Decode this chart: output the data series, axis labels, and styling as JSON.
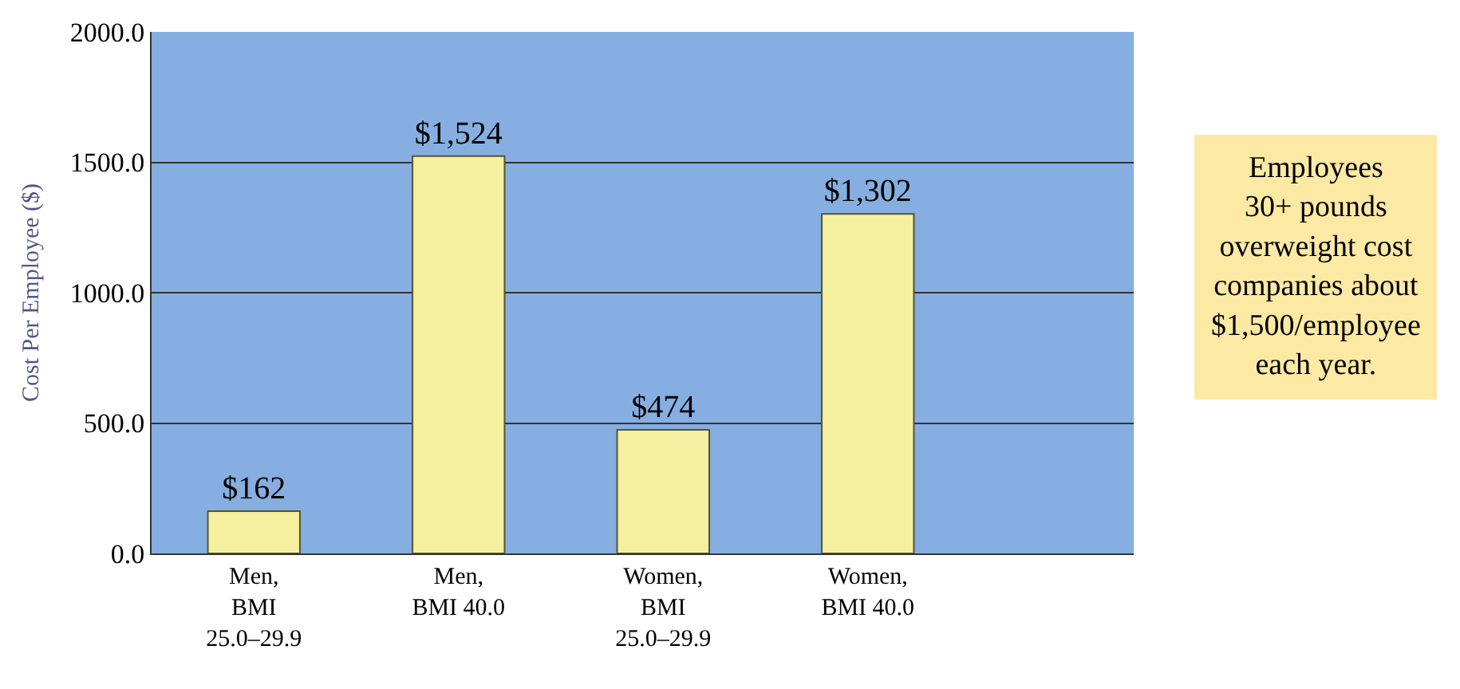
{
  "chart_data": {
    "type": "bar",
    "ylabel": "Cost Per Employee ($)",
    "categories": [
      "Men,\nBMI\n25.0–29.9",
      "Men,\nBMI 40.0",
      "Women,\nBMI\n25.0–29.9",
      "Women,\nBMI 40.0"
    ],
    "values": [
      162,
      1524,
      474,
      1302
    ],
    "value_labels": [
      "$162",
      "$1,524",
      "$474",
      "$1,302"
    ],
    "color": "#f4f0a0",
    "ylim": [
      0,
      2000
    ],
    "yticks": [
      {
        "value": 0,
        "label": "0.0"
      },
      {
        "value": 500,
        "label": "500.0"
      },
      {
        "value": 1000,
        "label": "1000.0"
      },
      {
        "value": 1500,
        "label": "1500.0"
      },
      {
        "value": 2000,
        "label": "2000.0"
      }
    ],
    "grid": "y",
    "annotations": [
      "Employees\n30+ pounds\noverweight cost\ncompanies about\n$1,500/employee\neach year."
    ]
  }
}
